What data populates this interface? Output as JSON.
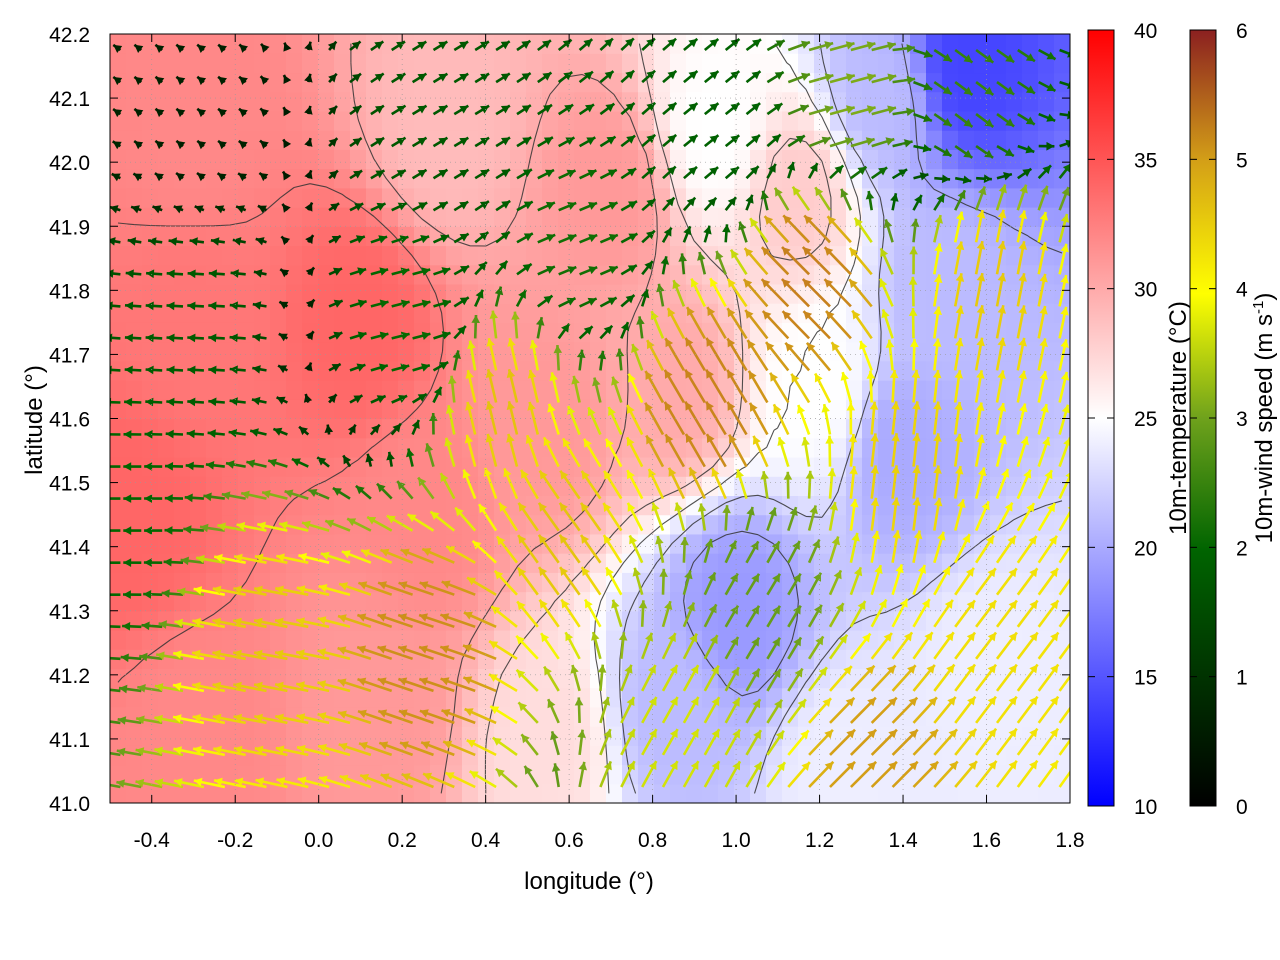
{
  "colors": {
    "temp_cold": "#0000ff",
    "temp_mid": "#ffffff",
    "temp_hot": "#ff0000",
    "wind_scale": [
      "#000000",
      "#006400",
      "#6fa21c",
      "#ffff00",
      "#d4a017",
      "#c07020",
      "#8b2020"
    ],
    "contour": "#333333"
  },
  "chart_data": {
    "type": "heatmap",
    "xlabel": "longitude (°)",
    "ylabel": "latitude (°)",
    "xlim": [
      -0.5,
      1.8
    ],
    "ylim": [
      41.0,
      42.2
    ],
    "xticks": [
      "-0.4",
      "-0.2",
      "0.0",
      "0.2",
      "0.4",
      "0.6",
      "0.8",
      "1.0",
      "1.2",
      "1.4",
      "1.6",
      "1.8"
    ],
    "xtick_values": [
      -0.4,
      -0.2,
      0.0,
      0.2,
      0.4,
      0.6,
      0.8,
      1.0,
      1.2,
      1.4,
      1.6,
      1.8
    ],
    "yticks": [
      "41.0",
      "41.1",
      "41.2",
      "41.3",
      "41.4",
      "41.5",
      "41.6",
      "41.7",
      "41.8",
      "41.9",
      "42.0",
      "42.1",
      "42.2"
    ],
    "ytick_values": [
      41.0,
      41.1,
      41.2,
      41.3,
      41.4,
      41.5,
      41.6,
      41.7,
      41.8,
      41.9,
      42.0,
      42.1,
      42.2
    ],
    "grid": true,
    "temperature_colorbar": {
      "label": "10m-temperature (°C)",
      "range": [
        10,
        40
      ],
      "ticks": [
        "10",
        "15",
        "20",
        "25",
        "30",
        "35",
        "40"
      ],
      "tick_values": [
        10,
        15,
        20,
        25,
        30,
        35,
        40
      ]
    },
    "wind_colorbar": {
      "label_main": "10m-wind speed (m s",
      "label_sup": "-1",
      "label_end": ")",
      "range": [
        0,
        6
      ],
      "ticks": [
        "0",
        "1",
        "2",
        "3",
        "4",
        "5",
        "6"
      ],
      "tick_values": [
        0,
        1,
        2,
        3,
        4,
        5,
        6
      ]
    },
    "temperature_field": [
      {
        "lon": -0.45,
        "lat": 41.45,
        "t": 34
      },
      {
        "lon": -0.3,
        "lat": 41.75,
        "t": 33
      },
      {
        "lon": 0.1,
        "lat": 41.75,
        "t": 34
      },
      {
        "lon": 0.25,
        "lat": 41.45,
        "t": 32
      },
      {
        "lon": 0.15,
        "lat": 41.15,
        "t": 31
      },
      {
        "lon": -0.3,
        "lat": 41.1,
        "t": 32
      },
      {
        "lon": -0.3,
        "lat": 42.05,
        "t": 32
      },
      {
        "lon": 0.3,
        "lat": 42.05,
        "t": 29
      },
      {
        "lon": 0.7,
        "lat": 41.95,
        "t": 31
      },
      {
        "lon": 0.55,
        "lat": 41.6,
        "t": 31
      },
      {
        "lon": 0.85,
        "lat": 41.65,
        "t": 30
      },
      {
        "lon": 1.0,
        "lat": 41.3,
        "t": 19
      },
      {
        "lon": 0.85,
        "lat": 41.15,
        "t": 21
      },
      {
        "lon": 1.4,
        "lat": 41.55,
        "t": 20
      },
      {
        "lon": 1.5,
        "lat": 41.8,
        "t": 21
      },
      {
        "lon": 1.55,
        "lat": 42.15,
        "t": 14
      },
      {
        "lon": 1.35,
        "lat": 42.1,
        "t": 21
      },
      {
        "lon": 1.6,
        "lat": 41.2,
        "t": 24
      },
      {
        "lon": 0.55,
        "lat": 41.1,
        "t": 27
      },
      {
        "lon": 1.25,
        "lat": 41.05,
        "t": 24
      },
      {
        "lon": 0.95,
        "lat": 42.05,
        "t": 25
      },
      {
        "lon": 1.15,
        "lat": 41.95,
        "t": 28
      },
      {
        "lon": 1.2,
        "lat": 41.65,
        "t": 25
      }
    ],
    "wind_zones": [
      {
        "lon": -0.45,
        "lat": 41.45,
        "u": -2.0,
        "v": 0.0
      },
      {
        "lon": -0.3,
        "lat": 42.05,
        "u": -0.5,
        "v": 0.4
      },
      {
        "lon": 0.3,
        "lat": 42.05,
        "u": 1.5,
        "v": 0.9
      },
      {
        "lon": 0.6,
        "lat": 41.85,
        "u": 2.0,
        "v": 0.8
      },
      {
        "lon": -0.3,
        "lat": 41.75,
        "u": -1.8,
        "v": 0.1
      },
      {
        "lon": 0.2,
        "lat": 41.75,
        "u": 2.0,
        "v": 0.5
      },
      {
        "lon": -0.1,
        "lat": 41.25,
        "u": -4.2,
        "v": 0.8
      },
      {
        "lon": 0.3,
        "lat": 41.25,
        "u": -4.5,
        "v": 1.5
      },
      {
        "lon": 0.45,
        "lat": 41.6,
        "u": -1.0,
        "v": 4.2
      },
      {
        "lon": 0.6,
        "lat": 41.4,
        "u": -2.5,
        "v": 3.5
      },
      {
        "lon": 0.95,
        "lat": 41.6,
        "u": -2.5,
        "v": 4.2
      },
      {
        "lon": 1.2,
        "lat": 41.8,
        "u": -3.5,
        "v": 3.5
      },
      {
        "lon": 1.05,
        "lat": 41.3,
        "u": 1.5,
        "v": 2.5
      },
      {
        "lon": 0.85,
        "lat": 41.1,
        "u": 1.8,
        "v": 3.2
      },
      {
        "lon": 1.4,
        "lat": 41.5,
        "u": 0.5,
        "v": 4.2
      },
      {
        "lon": 1.6,
        "lat": 41.25,
        "u": 2.5,
        "v": 3.3
      },
      {
        "lon": 1.3,
        "lat": 41.05,
        "u": 3.2,
        "v": 3.2
      },
      {
        "lon": 1.55,
        "lat": 42.1,
        "u": 2.0,
        "v": -1.5
      },
      {
        "lon": 1.6,
        "lat": 41.8,
        "u": 0.8,
        "v": 4.2
      },
      {
        "lon": 1.25,
        "lat": 42.1,
        "u": 3.0,
        "v": 0.8
      },
      {
        "lon": 0.95,
        "lat": 42.05,
        "u": 1.5,
        "v": 1.2
      }
    ]
  }
}
